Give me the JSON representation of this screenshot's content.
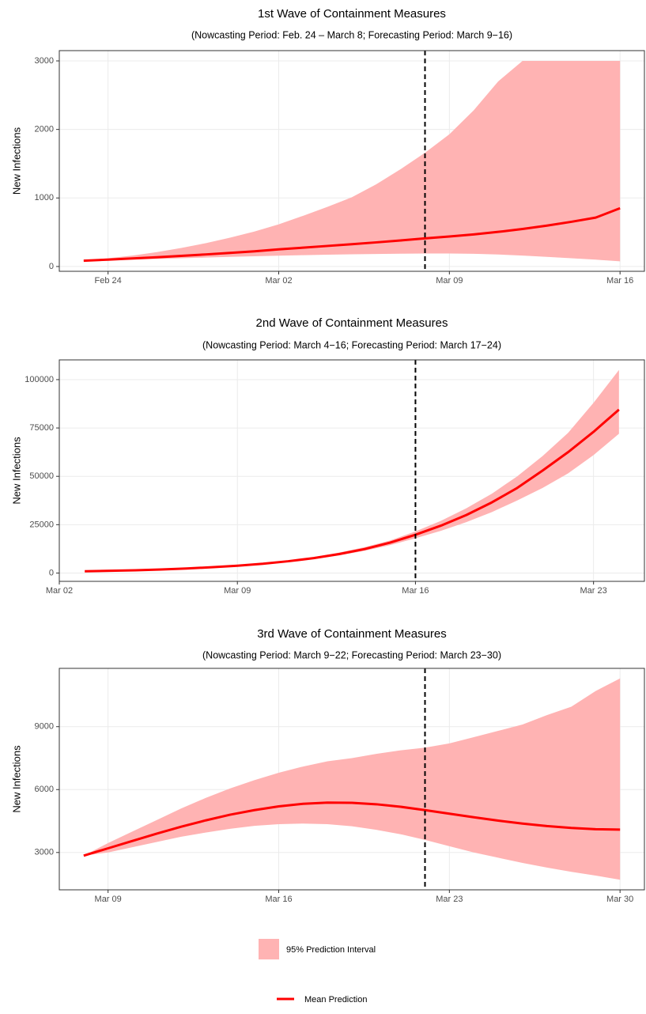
{
  "chart_data": [
    {
      "type": "line",
      "title": "1st Wave of Containment Measures",
      "subtitle": "(Nowcasting Period: Feb. 24 – March 8; Forecasting Period: March 9−16)",
      "ylabel": "New Infections",
      "x": [
        "Feb 23",
        "Feb 24",
        "Feb 25",
        "Feb 26",
        "Feb 27",
        "Feb 28",
        "Feb 29",
        "Mar 01",
        "Mar 02",
        "Mar 03",
        "Mar 04",
        "Mar 05",
        "Mar 06",
        "Mar 07",
        "Mar 08",
        "Mar 09",
        "Mar 10",
        "Mar 11",
        "Mar 12",
        "Mar 13",
        "Mar 14",
        "Mar 15",
        "Mar 16"
      ],
      "mean": [
        85,
        100,
        117,
        135,
        155,
        176,
        199,
        222,
        250,
        275,
        300,
        325,
        352,
        380,
        410,
        438,
        468,
        505,
        548,
        597,
        652,
        713,
        850
      ],
      "lower": [
        80,
        90,
        100,
        110,
        120,
        130,
        140,
        150,
        158,
        165,
        172,
        178,
        183,
        187,
        190,
        190,
        185,
        175,
        160,
        140,
        120,
        100,
        75
      ],
      "upper": [
        90,
        120,
        160,
        210,
        270,
        340,
        420,
        510,
        615,
        740,
        870,
        1010,
        1200,
        1420,
        1660,
        1930,
        2280,
        2700,
        3000,
        3000,
        3000,
        3000,
        3000
      ],
      "vline": "Mar 08",
      "xlim": [
        "Feb 22",
        "Mar 17"
      ],
      "xticks": [
        "Feb 24",
        "Mar 02",
        "Mar 09",
        "Mar 16"
      ],
      "ylim": [
        -70,
        3150
      ],
      "yticks": [
        0,
        1000,
        2000,
        3000
      ],
      "grid": true
    },
    {
      "type": "line",
      "title": "2nd Wave of Containment Measures",
      "subtitle": "(Nowcasting Period: March 4−16; Forecasting Period: March 17−24)",
      "ylabel": "New Infections",
      "x": [
        "Mar 03",
        "Mar 04",
        "Mar 05",
        "Mar 06",
        "Mar 07",
        "Mar 08",
        "Mar 09",
        "Mar 10",
        "Mar 11",
        "Mar 12",
        "Mar 13",
        "Mar 14",
        "Mar 15",
        "Mar 16",
        "Mar 17",
        "Mar 18",
        "Mar 19",
        "Mar 20",
        "Mar 21",
        "Mar 22",
        "Mar 23",
        "Mar 24"
      ],
      "mean": [
        900,
        1150,
        1450,
        1850,
        2350,
        3000,
        3800,
        4800,
        6100,
        7700,
        9800,
        12400,
        15700,
        19800,
        24500,
        30000,
        36500,
        44000,
        53000,
        62500,
        73000,
        84500
      ],
      "lower": [
        880,
        1120,
        1400,
        1780,
        2250,
        2850,
        3600,
        4500,
        5700,
        7200,
        9100,
        11500,
        14400,
        18000,
        21800,
        26300,
        31500,
        37500,
        44000,
        51500,
        61000,
        72000
      ],
      "upper": [
        920,
        1180,
        1500,
        1920,
        2450,
        3150,
        4000,
        5100,
        6500,
        8300,
        10600,
        13400,
        16800,
        21500,
        27000,
        33500,
        41000,
        50000,
        60500,
        72500,
        88000,
        105000
      ],
      "vline": "Mar 16",
      "xlim": [
        "Mar 02",
        "Mar 25"
      ],
      "xticks": [
        "Mar 02",
        "Mar 09",
        "Mar 16",
        "Mar 23"
      ],
      "ylim": [
        -4300,
        110200
      ],
      "yticks": [
        0,
        25000,
        50000,
        75000,
        100000
      ],
      "grid": true
    },
    {
      "type": "line",
      "title": "3rd Wave of Containment Measures",
      "subtitle": "(Nowcasting Period: March 9−22; Forecasting Period: March 23−30)",
      "ylabel": "New Infections",
      "x": [
        "Mar 08",
        "Mar 09",
        "Mar 10",
        "Mar 11",
        "Mar 12",
        "Mar 13",
        "Mar 14",
        "Mar 15",
        "Mar 16",
        "Mar 17",
        "Mar 18",
        "Mar 19",
        "Mar 20",
        "Mar 21",
        "Mar 22",
        "Mar 23",
        "Mar 24",
        "Mar 25",
        "Mar 26",
        "Mar 27",
        "Mar 28",
        "Mar 29",
        "Mar 30"
      ],
      "mean": [
        2850,
        3200,
        3550,
        3900,
        4230,
        4530,
        4800,
        5020,
        5200,
        5320,
        5380,
        5370,
        5300,
        5180,
        5020,
        4850,
        4680,
        4520,
        4380,
        4260,
        4170,
        4110,
        4090
      ],
      "lower": [
        2850,
        3000,
        3250,
        3500,
        3750,
        3950,
        4130,
        4270,
        4350,
        4380,
        4350,
        4250,
        4080,
        3870,
        3600,
        3300,
        3000,
        2750,
        2500,
        2280,
        2080,
        1900,
        1700
      ],
      "upper": [
        2850,
        3450,
        4000,
        4550,
        5100,
        5600,
        6050,
        6450,
        6800,
        7100,
        7350,
        7500,
        7700,
        7870,
        8000,
        8200,
        8500,
        8800,
        9100,
        9550,
        9950,
        10700,
        11300
      ],
      "vline": "Mar 22",
      "xlim": [
        "Mar 07",
        "Mar 31"
      ],
      "xticks": [
        "Mar 09",
        "Mar 16",
        "Mar 23",
        "Mar 30"
      ],
      "ylim": [
        1220,
        11780
      ],
      "yticks": [
        3000,
        6000,
        9000
      ],
      "grid": true
    }
  ],
  "legend": {
    "position": "bottom",
    "interval": {
      "label": "95% Prediction Interval",
      "color": "#ffb3b3"
    },
    "mean": {
      "label": "Mean Prediction",
      "color": "#ff0000"
    }
  }
}
